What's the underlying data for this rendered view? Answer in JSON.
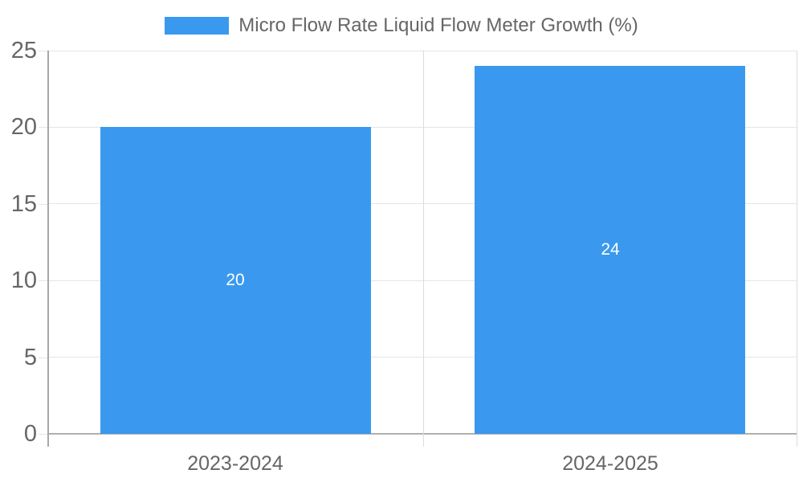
{
  "chart_data": {
    "type": "bar",
    "categories": [
      "2023-2024",
      "2024-2025"
    ],
    "series": [
      {
        "name": "Micro Flow Rate Liquid Flow Meter Growth (%)",
        "values": [
          20,
          24
        ],
        "data_labels": [
          "20",
          "24"
        ]
      }
    ],
    "yticks": [
      0,
      5,
      10,
      15,
      20,
      25
    ],
    "ylim": [
      0,
      25
    ],
    "legend_position": "top",
    "grid": true,
    "colors": {
      "bar": "#3a99ee",
      "text": "#666666",
      "grid_h": "#e5e5e5",
      "grid_v": "#dcdcdc",
      "axis": "#a8a8a8",
      "baseline": "#b0b0b0",
      "bar_label": "#ffffff"
    }
  }
}
